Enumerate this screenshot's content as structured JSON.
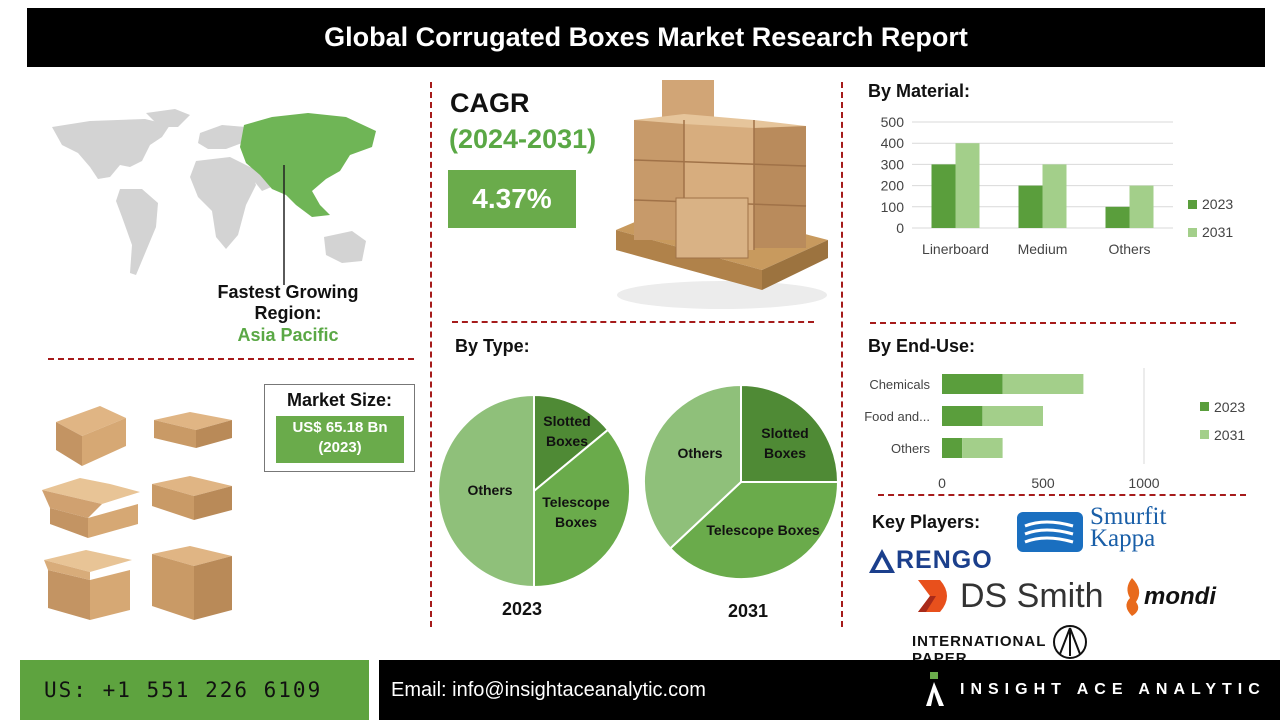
{
  "title": "Global Corrugated Boxes Market Research Report",
  "region": {
    "label": "Fastest Growing Region:",
    "value": "Asia Pacific"
  },
  "cagr": {
    "label": "CAGR",
    "period": "(2024-2031)",
    "value": "4.37%"
  },
  "market_size": {
    "label": "Market Size:",
    "value": "US$ 65.18 Bn",
    "year": "(2023)"
  },
  "sections": {
    "material": "By Material:",
    "type": "By Type:",
    "end_use": "By End-Use:",
    "key_players": "Key Players:"
  },
  "players": [
    "Smurfit Kappa",
    "RENGO",
    "DS Smith",
    "mondi",
    "INTERNATIONAL PAPER"
  ],
  "footer": {
    "phone": "US: +1 551 226 6109",
    "email": "Email: info@insightaceanalytic.com",
    "brand": "INSIGHT ACE ANALYTIC"
  },
  "colors": {
    "dark_green": "#5a9e3c",
    "light_green": "#a3cf8a",
    "pie_dark": "#4f8a35",
    "pie_mid": "#6aab4b",
    "pie_light": "#8fc07a",
    "map_highlight": "#6fb556",
    "map_grey": "#d3d3d3",
    "divider": "#a51b1b"
  },
  "icons": [
    "world-map-icon",
    "box-pallet-icon",
    "cardboard-box-icon",
    "rengo-logo-icon",
    "smurfit-kappa-logo-icon",
    "ds-smith-logo-icon",
    "mondi-logo-icon",
    "international-paper-logo-icon",
    "insight-ace-logo-icon"
  ],
  "chart_data": [
    {
      "type": "bar",
      "title": "By Material:",
      "categories": [
        "Linerboard",
        "Medium",
        "Others"
      ],
      "series": [
        {
          "name": "2023",
          "values": [
            300,
            200,
            100
          ]
        },
        {
          "name": "2031",
          "values": [
            400,
            300,
            200
          ]
        }
      ],
      "ylim": [
        0,
        500
      ],
      "yticks": [
        0,
        100,
        200,
        300,
        400,
        500
      ],
      "grid": true,
      "legend": "right"
    },
    {
      "type": "pie",
      "title": "By Type:",
      "label": "2023",
      "slices": [
        {
          "name": "Slotted Boxes",
          "value": 14
        },
        {
          "name": "Telescope Boxes",
          "value": 36
        },
        {
          "name": "Others",
          "value": 50
        }
      ]
    },
    {
      "type": "pie",
      "title": "By Type:",
      "label": "2031",
      "slices": [
        {
          "name": "Slotted Boxes",
          "value": 25
        },
        {
          "name": "Telescope Boxes",
          "value": 38
        },
        {
          "name": "Others",
          "value": 37
        }
      ]
    },
    {
      "type": "bar",
      "orientation": "horizontal",
      "stacked": true,
      "title": "By End-Use:",
      "categories": [
        "Chemicals",
        "Food and...",
        "Others"
      ],
      "series": [
        {
          "name": "2023",
          "values": [
            300,
            200,
            100
          ]
        },
        {
          "name": "2031",
          "values": [
            400,
            300,
            200
          ]
        }
      ],
      "xlim": [
        0,
        1000
      ],
      "xticks": [
        0,
        500,
        1000
      ],
      "legend": "right"
    }
  ]
}
